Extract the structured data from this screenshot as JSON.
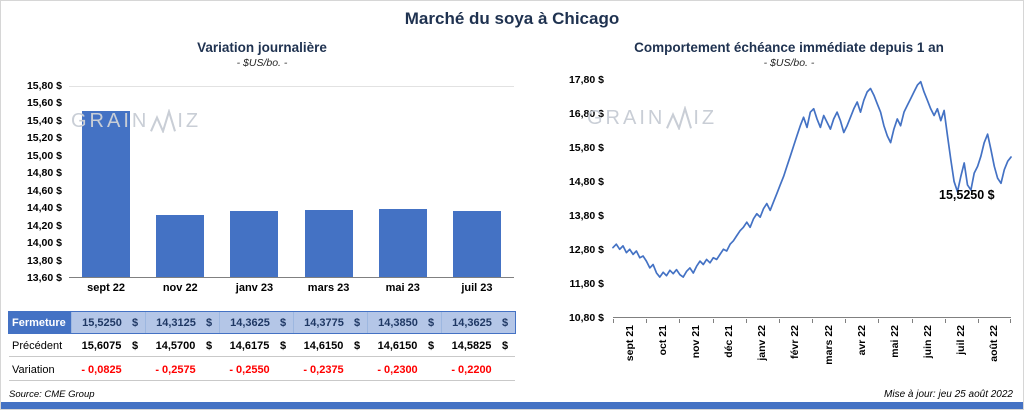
{
  "page": {
    "title": "Marché du soya à Chicago",
    "source": "Source: CME Group",
    "updated": "Mise à jour: jeu 25 août 2022",
    "watermark_prefix": "GRAIN",
    "watermark_suffix": "IZ",
    "colors": {
      "accent": "#4472C4",
      "highlight_bg": "#B4C6E7",
      "highlight_text": "#1F3864",
      "negative": "#FF0000",
      "title_color": "#1F3250",
      "watermark_color": "#C9CED6"
    }
  },
  "chart_data": [
    {
      "type": "bar",
      "title": "Variation  journalière",
      "subtitle": "- $US/bo. -",
      "categories": [
        "sept 22",
        "nov 22",
        "janv 23",
        "mars 23",
        "mai 23",
        "juil 23"
      ],
      "values": [
        15.525,
        14.3125,
        14.3625,
        14.3775,
        14.385,
        14.3625
      ],
      "ylim": [
        13.6,
        15.8
      ],
      "ytick_step": 0.2,
      "ytick_decimals": 2,
      "ytick_suffix": " $",
      "bar_color": "#4472C4",
      "grid": false,
      "table": {
        "rows": [
          {
            "label": "Fermeture",
            "style": "highlight",
            "suffix": "$",
            "values": [
              "15,5250",
              "14,3125",
              "14,3625",
              "14,3775",
              "14,3850",
              "14,3625"
            ]
          },
          {
            "label": "Précédent",
            "style": "normal",
            "suffix": "$",
            "values": [
              "15,6075",
              "14,5700",
              "14,6175",
              "14,6150",
              "14,6150",
              "14,5825"
            ]
          },
          {
            "label": "Variation",
            "style": "negative",
            "suffix": "",
            "values": [
              "- 0,0825",
              "- 0,2575",
              "- 0,2550",
              "- 0,2375",
              "- 0,2300",
              "- 0,2200"
            ]
          }
        ]
      }
    },
    {
      "type": "line",
      "title": "Comportement  échéance  immédiate  depuis 1 an",
      "subtitle": "- $US/bo. -",
      "x_labels": [
        "sept 21",
        "oct 21",
        "nov 21",
        "déc 21",
        "janv 22",
        "févr 22",
        "mars 22",
        "avr 22",
        "mai 22",
        "juin 22",
        "juil 22",
        "août 22"
      ],
      "values": [
        12.85,
        12.95,
        12.8,
        12.9,
        12.7,
        12.8,
        12.65,
        12.75,
        12.55,
        12.6,
        12.45,
        12.25,
        12.35,
        12.1,
        11.98,
        12.12,
        12.02,
        12.18,
        12.08,
        12.2,
        12.05,
        11.98,
        12.15,
        12.25,
        12.1,
        12.3,
        12.45,
        12.35,
        12.5,
        12.4,
        12.55,
        12.5,
        12.65,
        12.8,
        12.75,
        12.95,
        13.05,
        13.2,
        13.35,
        13.45,
        13.6,
        13.45,
        13.7,
        13.85,
        13.75,
        14.0,
        14.15,
        13.95,
        14.2,
        14.45,
        14.7,
        14.95,
        15.25,
        15.55,
        15.85,
        16.15,
        16.45,
        16.7,
        16.4,
        16.85,
        16.95,
        16.65,
        16.4,
        16.75,
        16.55,
        16.35,
        16.65,
        16.85,
        16.6,
        16.25,
        16.45,
        16.7,
        16.95,
        17.15,
        16.85,
        17.2,
        17.45,
        17.55,
        17.35,
        17.1,
        16.85,
        16.45,
        16.15,
        15.95,
        16.35,
        16.65,
        16.45,
        16.85,
        17.05,
        17.25,
        17.45,
        17.65,
        17.75,
        17.45,
        17.2,
        16.95,
        16.75,
        16.95,
        16.6,
        16.9,
        16.15,
        15.45,
        14.8,
        14.5,
        14.95,
        15.35,
        14.7,
        14.55,
        15.05,
        15.25,
        15.55,
        15.95,
        16.2,
        15.75,
        15.25,
        14.9,
        14.75,
        15.15,
        15.4,
        15.525
      ],
      "ylim": [
        10.8,
        17.8
      ],
      "ytick_step": 1.0,
      "ytick_decimals": 2,
      "ytick_suffix": " $",
      "line_color": "#4472C4",
      "annotation": "15,5250 $",
      "legend": "none"
    }
  ]
}
